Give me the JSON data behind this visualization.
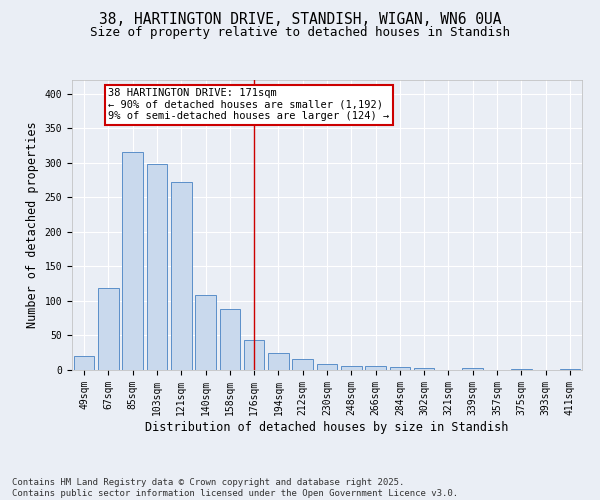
{
  "title_line1": "38, HARTINGTON DRIVE, STANDISH, WIGAN, WN6 0UA",
  "title_line2": "Size of property relative to detached houses in Standish",
  "xlabel": "Distribution of detached houses by size in Standish",
  "ylabel": "Number of detached properties",
  "categories": [
    "49sqm",
    "67sqm",
    "85sqm",
    "103sqm",
    "121sqm",
    "140sqm",
    "158sqm",
    "176sqm",
    "194sqm",
    "212sqm",
    "230sqm",
    "248sqm",
    "266sqm",
    "284sqm",
    "302sqm",
    "321sqm",
    "339sqm",
    "357sqm",
    "375sqm",
    "393sqm",
    "411sqm"
  ],
  "values": [
    20,
    119,
    315,
    299,
    272,
    109,
    89,
    44,
    25,
    16,
    9,
    6,
    6,
    5,
    3,
    0,
    3,
    0,
    2,
    0,
    1
  ],
  "bar_color": "#c9d9ed",
  "bar_edge_color": "#5b8fc9",
  "vertical_line_x": 7,
  "annotation_title": "38 HARTINGTON DRIVE: 171sqm",
  "annotation_line1": "← 90% of detached houses are smaller (1,192)",
  "annotation_line2": "9% of semi-detached houses are larger (124) →",
  "annotation_box_color": "#ffffff",
  "annotation_box_edge_color": "#cc0000",
  "vertical_line_color": "#cc0000",
  "ylim": [
    0,
    420
  ],
  "yticks": [
    0,
    50,
    100,
    150,
    200,
    250,
    300,
    350,
    400
  ],
  "background_color": "#eaeef5",
  "grid_color": "#ffffff",
  "footer_line1": "Contains HM Land Registry data © Crown copyright and database right 2025.",
  "footer_line2": "Contains public sector information licensed under the Open Government Licence v3.0.",
  "title_fontsize": 10.5,
  "subtitle_fontsize": 9,
  "axis_label_fontsize": 8.5,
  "tick_fontsize": 7,
  "annotation_fontsize": 7.5,
  "footer_fontsize": 6.5
}
